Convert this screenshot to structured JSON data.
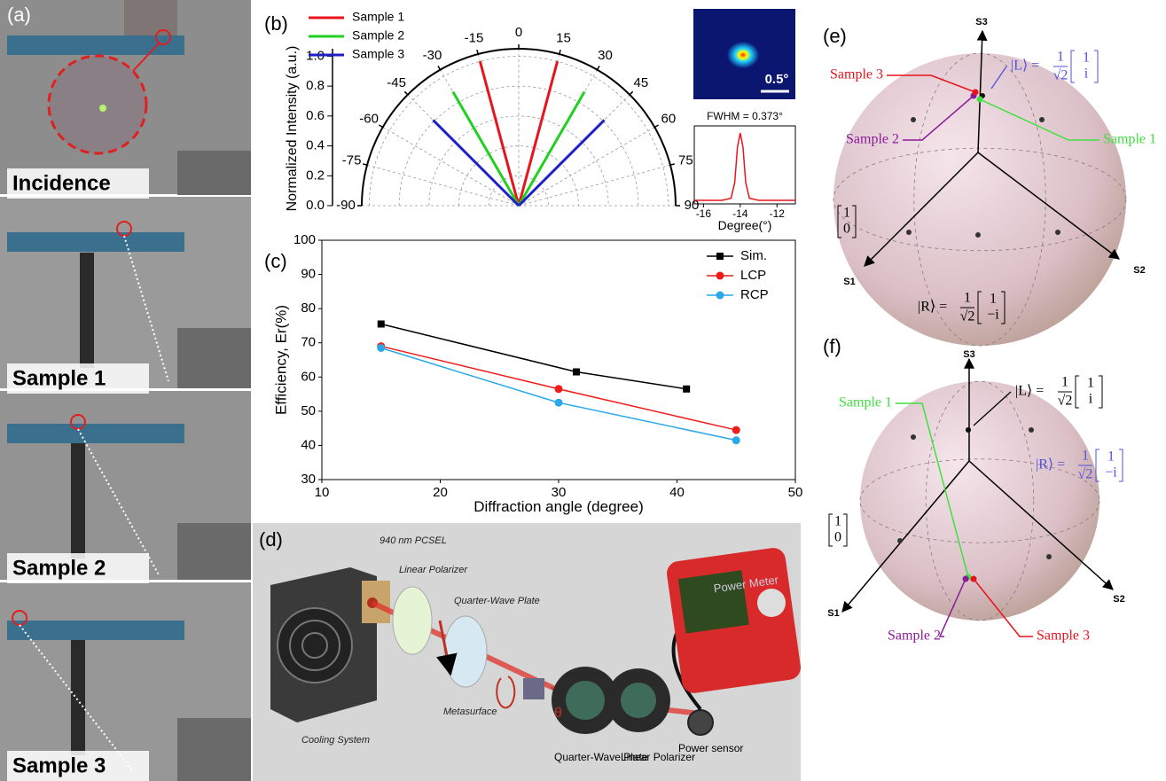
{
  "panel_labels": {
    "a": "(a)",
    "b": "(b)",
    "c": "(c)",
    "d": "(d)",
    "e": "(e)",
    "f": "(f)"
  },
  "photos": [
    "Incidence",
    "Sample 1",
    "Sample 2",
    "Sample 3"
  ],
  "inset_image": {
    "scale_label": "0.5°"
  },
  "chart_data": [
    {
      "type": "polar",
      "ylabel": "Normalized Intensity (a.u.)",
      "xlim": [
        -90,
        90
      ],
      "xticks": [
        -90,
        -75,
        -60,
        -45,
        -30,
        -15,
        0,
        15,
        30,
        45,
        60,
        75,
        90
      ],
      "ylim": [
        0,
        1.05
      ],
      "yticks": [
        {
          "value": 0,
          "label": "0.0"
        },
        0.2,
        0.4,
        0.6,
        0.8,
        {
          "value": 1,
          "label": "1.0"
        }
      ],
      "grid": true,
      "legend": "upper left",
      "series": [
        {
          "name": "Sample 1",
          "color": "#e8141c",
          "x": [
            -15,
            15
          ],
          "values": [
            1.0,
            1.0
          ]
        },
        {
          "name": "Sample 2",
          "color": "#22d022",
          "x": [
            -30,
            30
          ],
          "values": [
            0.88,
            0.88
          ]
        },
        {
          "name": "Sample 3",
          "color": "#1f1fc8",
          "x": [
            -45,
            45
          ],
          "values": [
            0.81,
            0.81
          ]
        }
      ]
    },
    {
      "type": "line",
      "title": "FWHM = 0.373°",
      "xlabel": "Degree(°)",
      "xlim": [
        -16.5,
        -11
      ],
      "xticks": [
        -16,
        -14,
        -12
      ],
      "ylim": [
        0,
        1.1
      ],
      "series": [
        {
          "color": "#e8141c",
          "x": [
            -16.5,
            -15,
            -14.5,
            -14.3,
            -14.15,
            -14,
            -13.85,
            -13.7,
            -13.5,
            -13,
            -11
          ],
          "values": [
            0.05,
            0.05,
            0.08,
            0.3,
            0.8,
            1.0,
            0.8,
            0.3,
            0.08,
            0.05,
            0.05
          ]
        }
      ]
    },
    {
      "type": "line",
      "xlabel": "Diffraction angle (degree)",
      "ylabel": "Efficiency, Er(%)",
      "xlim": [
        10,
        50
      ],
      "xticks": [
        10,
        20,
        30,
        40,
        50
      ],
      "ylim": [
        30,
        100
      ],
      "yticks": [
        30,
        40,
        50,
        60,
        70,
        80,
        90,
        100
      ],
      "legend": "upper right",
      "markers": true,
      "series": [
        {
          "name": "Sim.",
          "color": "#000000",
          "marker": "square",
          "x": [
            15,
            31.5,
            40.8
          ],
          "values": [
            75.5,
            61.5,
            56.5
          ]
        },
        {
          "name": "LCP",
          "color": "#f01c1c",
          "marker": "circle",
          "x": [
            15,
            30,
            45
          ],
          "values": [
            69,
            56.5,
            44.5
          ]
        },
        {
          "name": "RCP",
          "color": "#2aa8e8",
          "marker": "circle",
          "x": [
            15,
            30,
            45
          ],
          "values": [
            68.5,
            52.5,
            41.5
          ]
        }
      ]
    }
  ],
  "setup": {
    "laser": "940 nm PCSEL",
    "polarizer1": "Linear Polarizer",
    "qwp1": "Quarter-Wave Plate",
    "cooling": "Cooling System",
    "metasurface": "Metasurface",
    "angle": "θ",
    "qwp2": "Quarter-Wave Plate",
    "polarizer2": "Linear Polarizer",
    "sensor": "Power sensor",
    "meter": "Power Meter"
  },
  "spheres": [
    {
      "s1": "S1",
      "s2": "S2",
      "s3": "S3",
      "samples": [
        "Sample 1",
        "Sample 2",
        "Sample 3"
      ],
      "h": [
        "1",
        "0"
      ],
      "L": {
        "ket": "|L⟩ =",
        "num": "1",
        "den": "√2",
        "vec": [
          "1",
          "i"
        ]
      },
      "R": {
        "ket": "|R⟩ =",
        "num": "1",
        "den": "√2",
        "vec": [
          "1",
          "−i"
        ]
      }
    },
    {
      "s1": "S1",
      "s2": "S2",
      "s3": "S3",
      "samples": [
        "Sample 1",
        "Sample 2",
        "Sample 3"
      ],
      "h": [
        "1",
        "0"
      ],
      "L": {
        "ket": "|L⟩ =",
        "num": "1",
        "den": "√2",
        "vec": [
          "1",
          "i"
        ]
      },
      "R": {
        "ket": "|R⟩ =",
        "num": "1",
        "den": "√2",
        "vec": [
          "1",
          "−i"
        ]
      }
    }
  ]
}
